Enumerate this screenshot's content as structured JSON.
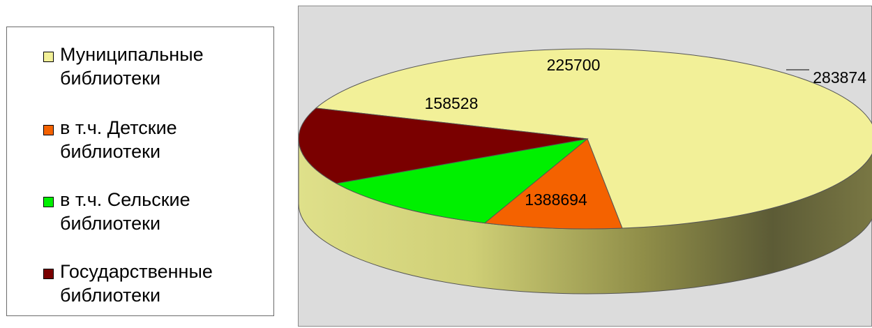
{
  "chart_data": {
    "type": "pie",
    "title": "",
    "style": "3d",
    "legend_position": "left",
    "slices": [
      {
        "label": "Муниципальные библиотеки",
        "value": 1388694,
        "color": "#f2f098"
      },
      {
        "label": "в т.ч. Детские библиотеки",
        "value": 158528,
        "color": "#f46200"
      },
      {
        "label": "в т.ч. Сельские библиотеки",
        "value": 225700,
        "color": "#00f000"
      },
      {
        "label": "Государственные библиотеки",
        "value": 283874,
        "color": "#7a0000"
      }
    ],
    "data_labels": [
      "1388694",
      "158528",
      "225700",
      "283874"
    ]
  },
  "legend": {
    "items": [
      {
        "label": "Муниципальные библиотеки",
        "color": "#f2f098"
      },
      {
        "label": "в т.ч. Детские библиотеки",
        "color": "#f46200"
      },
      {
        "label": "в т.ч. Сельские библиотеки",
        "color": "#00f000"
      },
      {
        "label": "Государственные библиотеки",
        "color": "#7a0000"
      }
    ]
  }
}
